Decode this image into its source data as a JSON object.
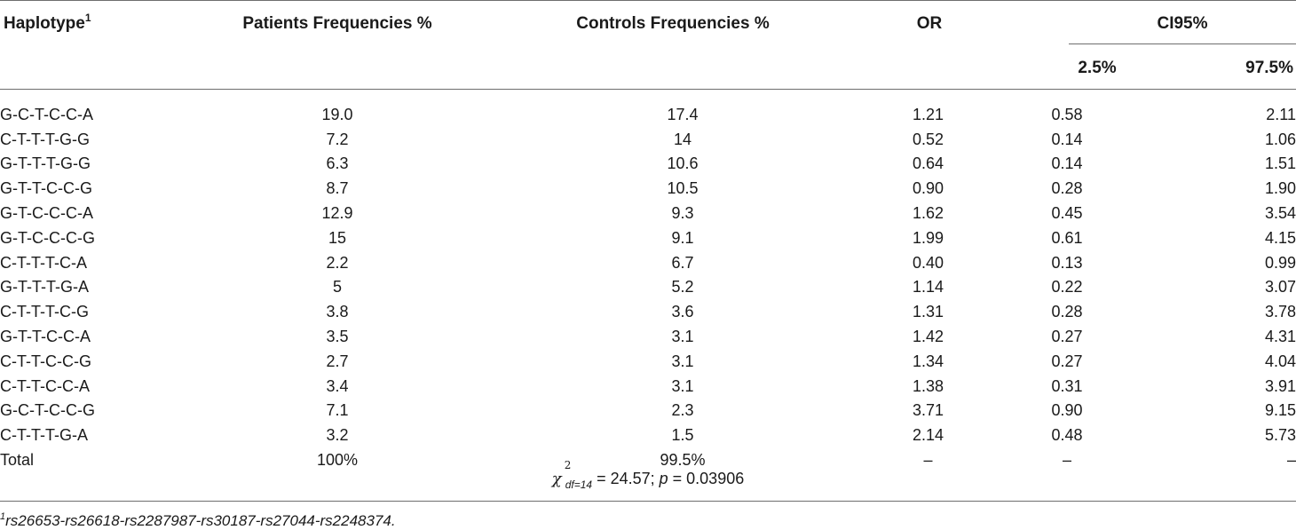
{
  "table": {
    "headers": {
      "haplotype": "Haplotype",
      "haplotype_note": "1",
      "patients": "Patients Frequencies %",
      "controls": "Controls Frequencies %",
      "or": "OR",
      "ci": "CI95%",
      "ci_low": "2.5%",
      "ci_high": "97.5%"
    },
    "rows": [
      {
        "hap": "G-C-T-C-C-A",
        "pat": "19.0",
        "con": "17.4",
        "or": "1.21",
        "lo": "0.58",
        "hi": "2.11"
      },
      {
        "hap": "C-T-T-T-G-G",
        "pat": "7.2",
        "con": "14",
        "or": "0.52",
        "lo": "0.14",
        "hi": "1.06"
      },
      {
        "hap": "G-T-T-T-G-G",
        "pat": "6.3",
        "con": "10.6",
        "or": "0.64",
        "lo": "0.14",
        "hi": "1.51"
      },
      {
        "hap": "G-T-T-C-C-G",
        "pat": "8.7",
        "con": "10.5",
        "or": "0.90",
        "lo": "0.28",
        "hi": "1.90"
      },
      {
        "hap": "G-T-C-C-C-A",
        "pat": "12.9",
        "con": "9.3",
        "or": "1.62",
        "lo": "0.45",
        "hi": "3.54"
      },
      {
        "hap": "G-T-C-C-C-G",
        "pat": "15",
        "con": "9.1",
        "or": "1.99",
        "lo": "0.61",
        "hi": "4.15"
      },
      {
        "hap": "C-T-T-T-C-A",
        "pat": "2.2",
        "con": "6.7",
        "or": "0.40",
        "lo": "0.13",
        "hi": "0.99"
      },
      {
        "hap": "G-T-T-T-G-A",
        "pat": "5",
        "con": "5.2",
        "or": "1.14",
        "lo": "0.22",
        "hi": "3.07"
      },
      {
        "hap": "C-T-T-T-C-G",
        "pat": "3.8",
        "con": "3.6",
        "or": "1.31",
        "lo": "0.28",
        "hi": "3.78"
      },
      {
        "hap": "G-T-T-C-C-A",
        "pat": "3.5",
        "con": "3.1",
        "or": "1.42",
        "lo": "0.27",
        "hi": "4.31"
      },
      {
        "hap": "C-T-T-C-C-G",
        "pat": "2.7",
        "con": "3.1",
        "or": "1.34",
        "lo": "0.27",
        "hi": "4.04"
      },
      {
        "hap": "C-T-T-C-C-A",
        "pat": "3.4",
        "con": "3.1",
        "or": "1.38",
        "lo": "0.31",
        "hi": "3.91"
      },
      {
        "hap": "G-C-T-C-C-G",
        "pat": "7.1",
        "con": "2.3",
        "or": "3.71",
        "lo": "0.90",
        "hi": "9.15"
      },
      {
        "hap": "C-T-T-T-G-A",
        "pat": "3.2",
        "con": "1.5",
        "or": "2.14",
        "lo": "0.48",
        "hi": "5.73"
      },
      {
        "hap": "Total",
        "pat": "100%",
        "con": "99.5%",
        "or": "–",
        "lo": "–",
        "hi": "–"
      }
    ],
    "stat": {
      "symbol": "χ",
      "sup": "2",
      "sub": "df=14",
      "value_text": " = 24.57; ",
      "p_symbol": "p",
      "p_text": " = 0.03906"
    },
    "footnote": {
      "mark": "1",
      "text": "rs26653-rs26618-rs2287987-rs30187-rs27044-rs2248374."
    }
  }
}
